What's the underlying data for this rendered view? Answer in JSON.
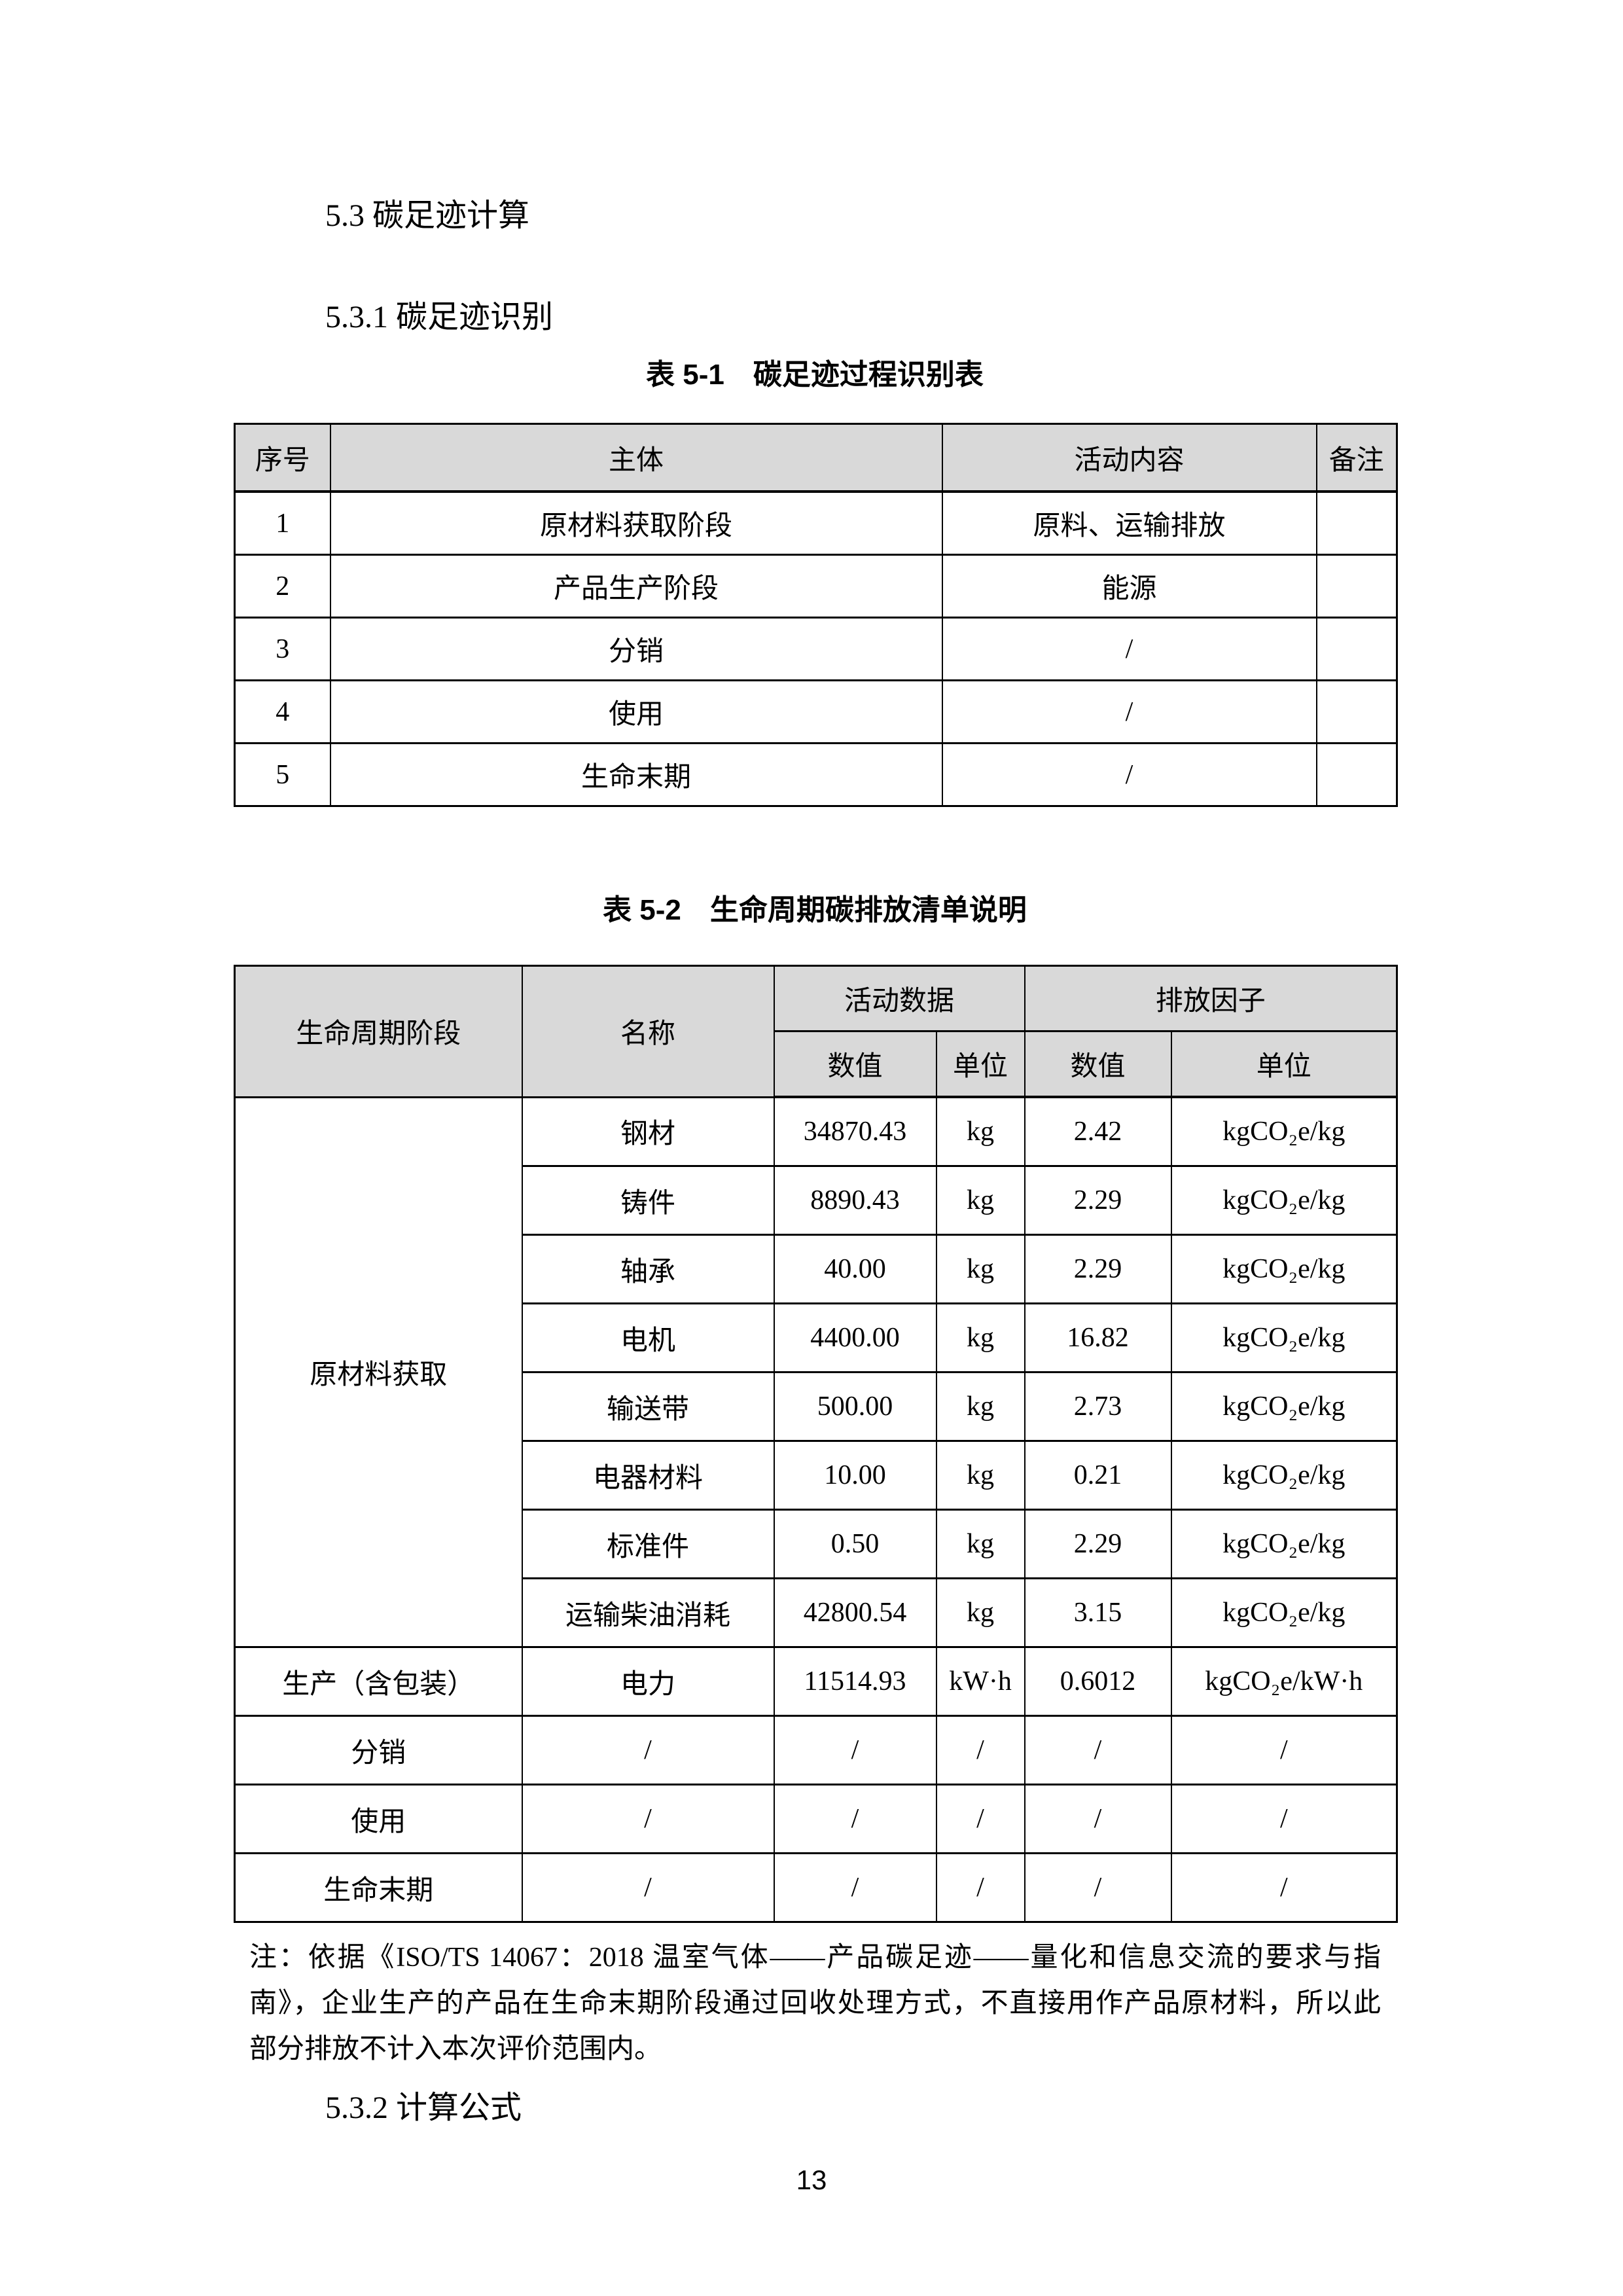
{
  "headings": {
    "h53": "5.3 碳足迹计算",
    "h531": "5.3.1 碳足迹识别",
    "h532": "5.3.2 计算公式"
  },
  "page_number": "13",
  "table1": {
    "title": "表 5-1　碳足迹过程识别表",
    "headers": [
      "序号",
      "主体",
      "活动内容",
      "备注"
    ],
    "rows": [
      [
        "1",
        "原材料获取阶段",
        "原料、运输排放",
        ""
      ],
      [
        "2",
        "产品生产阶段",
        "能源",
        ""
      ],
      [
        "3",
        "分销",
        "/",
        ""
      ],
      [
        "4",
        "使用",
        "/",
        ""
      ],
      [
        "5",
        "生命末期",
        "/",
        ""
      ]
    ]
  },
  "table2": {
    "title": "表 5-2　生命周期碳排放清单说明",
    "header": {
      "stage": "生命周期阶段",
      "name": "名称",
      "activity_data": "活动数据",
      "emission_factor": "排放因子",
      "value": "数值",
      "unit": "单位"
    },
    "rows": [
      [
        {
          "t": "原材料获取",
          "rs": 8
        },
        "钢材",
        "34870.43",
        "kg",
        "2.42",
        "kgCO₂e/kg"
      ],
      [
        "铸件",
        "8890.43",
        "kg",
        "2.29",
        "kgCO₂e/kg"
      ],
      [
        "轴承",
        "40.00",
        "kg",
        "2.29",
        "kgCO₂e/kg"
      ],
      [
        "电机",
        "4400.00",
        "kg",
        "16.82",
        "kgCO₂e/kg"
      ],
      [
        "输送带",
        "500.00",
        "kg",
        "2.73",
        "kgCO₂e/kg"
      ],
      [
        "电器材料",
        "10.00",
        "kg",
        "0.21",
        "kgCO₂e/kg"
      ],
      [
        "标准件",
        "0.50",
        "kg",
        "2.29",
        "kgCO₂e/kg"
      ],
      [
        "运输柴油消耗",
        "42800.54",
        "kg",
        "3.15",
        "kgCO₂e/kg"
      ],
      [
        "生产（含包装）",
        "电力",
        "11514.93",
        "kW·h",
        "0.6012",
        "kgCO₂e/kW·h"
      ],
      [
        "分销",
        "/",
        "/",
        "/",
        "/",
        "/"
      ],
      [
        "使用",
        "/",
        "/",
        "/",
        "/",
        "/"
      ],
      [
        "生命末期",
        "/",
        "/",
        "/",
        "/",
        "/"
      ]
    ]
  },
  "note": {
    "lines": [
      "注：依据《ISO/TS 14067：2018 温室气体——产品碳足迹——量化和信息交流的要求与指",
      "南》，企业生产的产品在生命末期阶段通过回收处理方式，不直接用作产品原材料，所以此",
      "部分排放不计入本次评价范围内。"
    ]
  }
}
